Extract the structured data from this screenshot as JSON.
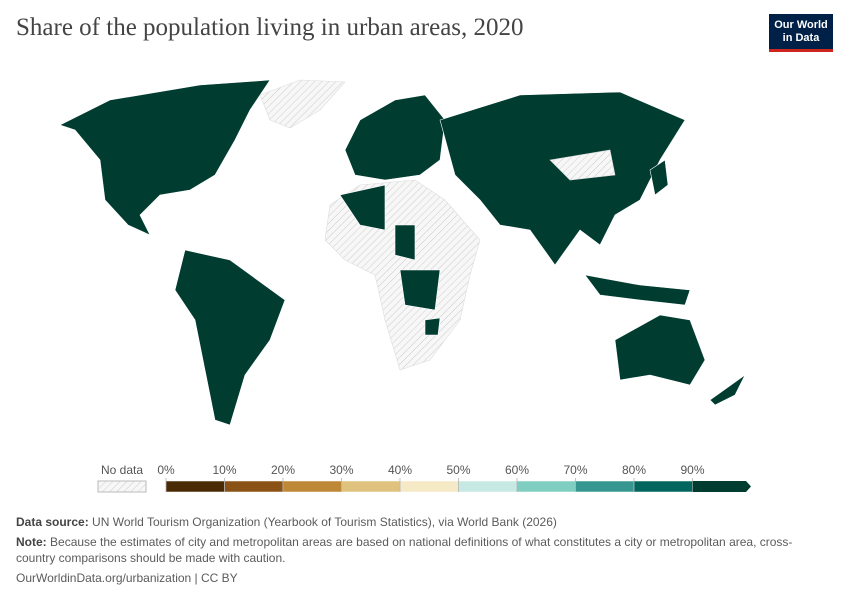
{
  "title": "Share of the population living in urban areas, 2020",
  "logo": {
    "line1": "Our World",
    "line2": "in Data"
  },
  "legend": {
    "no_data": "No data",
    "labels": [
      "0%",
      "10%",
      "20%",
      "30%",
      "40%",
      "50%",
      "60%",
      "70%",
      "80%",
      "90%"
    ],
    "colors": [
      "#4a2a05",
      "#8a5214",
      "#bf8836",
      "#dfc27e",
      "#f6e9c5",
      "#c7e9e3",
      "#80cdc1",
      "#35978f",
      "#01665e",
      "#003c30"
    ]
  },
  "footer": {
    "source_label": "Data source:",
    "source": "UN World Tourism Organization (Yearbook of Tourism Statistics), via World Bank (2026)",
    "note_label": "Note:",
    "note": "Because the estimates of city and metropolitan areas are based on national definitions of what constitutes a city or metropolitan area, cross-country comparisons should be made with caution.",
    "url": "OurWorldinData.org/urbanization | CC BY"
  }
}
